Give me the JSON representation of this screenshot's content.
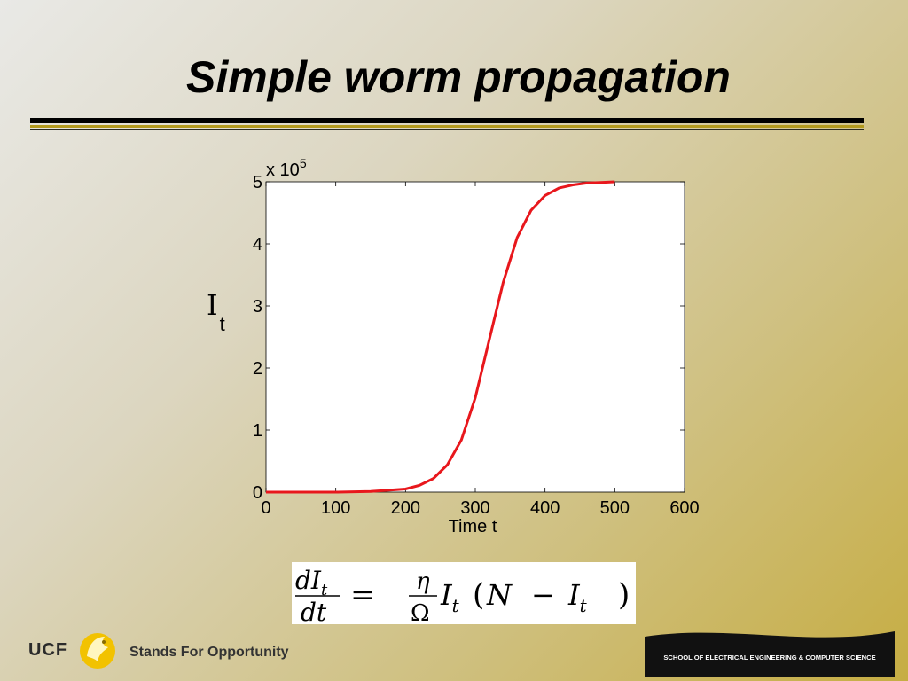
{
  "slide": {
    "title": "Simple worm propagation",
    "formula": {
      "lhs_num": "dI",
      "lhs_num_sub": "t",
      "lhs_den": "dt",
      "eq": "=",
      "rhs_num": "η",
      "rhs_den": "Ω",
      "rhs_a": "I",
      "rhs_a_sub": "t",
      "rhs_paren_open": "(",
      "rhs_N": "N",
      "rhs_minus": "−",
      "rhs_b": "I",
      "rhs_b_sub": "t",
      "rhs_paren_close": ")"
    }
  },
  "chart_data": {
    "type": "line",
    "xlabel": "Time t",
    "ylabel": "I",
    "ylabel_sub": "t",
    "y_multiplier_base": "x 10",
    "y_multiplier_exp": "5",
    "xlim": [
      0,
      600
    ],
    "ylim": [
      0,
      5
    ],
    "xticks": [
      0,
      100,
      200,
      300,
      400,
      500,
      600
    ],
    "yticks": [
      0,
      1,
      2,
      3,
      4,
      5
    ],
    "grid": false,
    "series": [
      {
        "color": "#e8171c",
        "x": [
          0,
          100,
          150,
          200,
          220,
          240,
          260,
          280,
          300,
          320,
          340,
          360,
          380,
          400,
          420,
          440,
          460,
          480,
          500
        ],
        "y": [
          0,
          0.0,
          0.01,
          0.05,
          0.11,
          0.22,
          0.44,
          0.84,
          1.52,
          2.45,
          3.38,
          4.1,
          4.54,
          4.78,
          4.9,
          4.95,
          4.98,
          4.99,
          5.0
        ]
      }
    ]
  },
  "footer": {
    "ucf": "UCF",
    "tagline": "Stands For Opportunity",
    "banner": "SCHOOL OF ELECTRICAL ENGINEERING & COMPUTER SCIENCE",
    "colors": {
      "gold": "#f2c200",
      "banner_bg": "#111111"
    }
  }
}
